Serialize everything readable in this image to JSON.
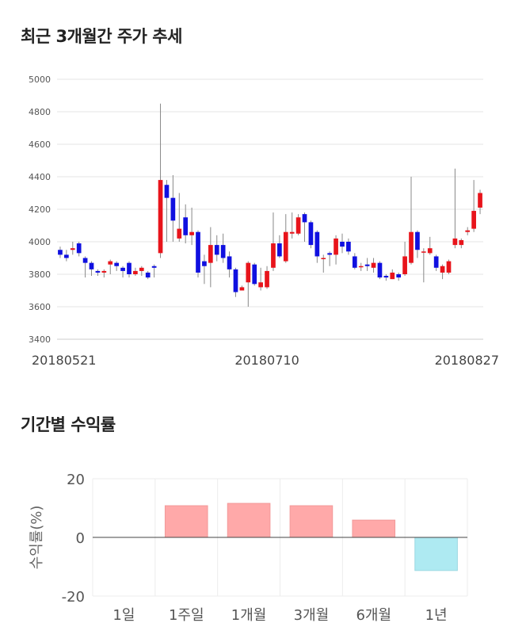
{
  "sections": {
    "price_title": "최근 3개월간 주가 추세",
    "returns_title": "기간별 수익률"
  },
  "chart_data": [
    {
      "type": "candlestick",
      "title": "최근 3개월간 주가 추세",
      "ylim": [
        3400,
        5000
      ],
      "yticks": [
        3400,
        3600,
        3800,
        4000,
        4200,
        4400,
        4600,
        4800,
        5000
      ],
      "x_labels": [
        {
          "index": 0,
          "label": "20180521"
        },
        {
          "index": 33,
          "label": "20180710"
        },
        {
          "index": 66,
          "label": "20180827"
        }
      ],
      "grid": true,
      "colors": {
        "up": "#e8141b",
        "down": "#1010e0",
        "wick": "#888888"
      },
      "candles": [
        [
          3950,
          3920,
          3970,
          3900
        ],
        [
          3920,
          3900,
          3950,
          3880
        ],
        [
          3950,
          3960,
          4000,
          3920
        ],
        [
          3990,
          3930,
          4000,
          3910
        ],
        [
          3900,
          3870,
          3910,
          3780
        ],
        [
          3870,
          3830,
          3880,
          3790
        ],
        [
          3820,
          3810,
          3830,
          3790
        ],
        [
          3810,
          3820,
          3830,
          3780
        ],
        [
          3860,
          3880,
          3890,
          3800
        ],
        [
          3870,
          3850,
          3880,
          3820
        ],
        [
          3840,
          3820,
          3850,
          3780
        ],
        [
          3870,
          3800,
          3880,
          3780
        ],
        [
          3800,
          3820,
          3840,
          3790
        ],
        [
          3820,
          3840,
          3850,
          3790
        ],
        [
          3810,
          3780,
          3820,
          3770
        ],
        [
          3850,
          3840,
          3860,
          3780
        ],
        [
          3930,
          4380,
          4850,
          3900
        ],
        [
          4350,
          4270,
          4380,
          4000
        ],
        [
          4270,
          4130,
          4410,
          4000
        ],
        [
          4020,
          4080,
          4300,
          4000
        ],
        [
          4150,
          4040,
          4230,
          3990
        ],
        [
          4040,
          4060,
          4210,
          3980
        ],
        [
          4060,
          3810,
          4070,
          3780
        ],
        [
          3880,
          3850,
          3920,
          3740
        ],
        [
          3870,
          3980,
          4090,
          3720
        ],
        [
          3980,
          3920,
          4040,
          3880
        ],
        [
          3980,
          3900,
          4050,
          3870
        ],
        [
          3910,
          3830,
          3940,
          3780
        ],
        [
          3830,
          3690,
          3840,
          3660
        ],
        [
          3700,
          3720,
          3730,
          3700
        ],
        [
          3750,
          3870,
          3880,
          3600
        ],
        [
          3860,
          3740,
          3870,
          3730
        ],
        [
          3720,
          3750,
          3840,
          3700
        ],
        [
          3720,
          3820,
          3850,
          3710
        ],
        [
          3840,
          3990,
          4180,
          3820
        ],
        [
          3990,
          3910,
          4040,
          3900
        ],
        [
          3880,
          4060,
          4170,
          3870
        ],
        [
          4050,
          4060,
          4180,
          4020
        ],
        [
          4050,
          4150,
          4170,
          4040
        ],
        [
          4170,
          4120,
          4180,
          4000
        ],
        [
          4120,
          3980,
          4130,
          3960
        ],
        [
          4060,
          3910,
          4070,
          3870
        ],
        [
          3900,
          3900,
          3920,
          3810
        ],
        [
          3930,
          3920,
          3940,
          3850
        ],
        [
          3920,
          4020,
          4040,
          3860
        ],
        [
          4000,
          3970,
          4050,
          3930
        ],
        [
          4000,
          3940,
          4020,
          3920
        ],
        [
          3910,
          3840,
          3930,
          3830
        ],
        [
          3850,
          3850,
          3870,
          3820
        ],
        [
          3860,
          3850,
          3900,
          3820
        ],
        [
          3840,
          3870,
          3900,
          3810
        ],
        [
          3870,
          3780,
          3880,
          3770
        ],
        [
          3790,
          3780,
          3800,
          3760
        ],
        [
          3770,
          3810,
          3830,
          3770
        ],
        [
          3800,
          3780,
          3810,
          3760
        ],
        [
          3800,
          3910,
          4000,
          3790
        ],
        [
          3870,
          4060,
          4400,
          3860
        ],
        [
          4060,
          3950,
          4070,
          3900
        ],
        [
          3940,
          3940,
          3960,
          3750
        ],
        [
          3930,
          3960,
          4030,
          3920
        ],
        [
          3910,
          3840,
          3920,
          3820
        ],
        [
          3810,
          3850,
          3860,
          3770
        ],
        [
          3810,
          3880,
          3890,
          3800
        ],
        [
          3980,
          4020,
          4450,
          3960
        ],
        [
          3980,
          4010,
          4020,
          3960
        ],
        [
          4060,
          4070,
          4090,
          4040
        ],
        [
          4080,
          4190,
          4380,
          4060
        ],
        [
          4210,
          4300,
          4320,
          4170
        ]
      ]
    },
    {
      "type": "bar",
      "title": "기간별 수익률",
      "categories": [
        "1일",
        "1주일",
        "1개월",
        "3개월",
        "6개월",
        "1년"
      ],
      "values": [
        0,
        10.8,
        11.6,
        10.8,
        5.9,
        -11.3
      ],
      "ylabel": "수익률(%)",
      "ylim": [
        -20,
        20
      ],
      "yticks": [
        20,
        0,
        -20
      ],
      "grid": true,
      "colors": {
        "positive": "#ffa9a9",
        "negative": "#aeeaf2"
      }
    }
  ]
}
